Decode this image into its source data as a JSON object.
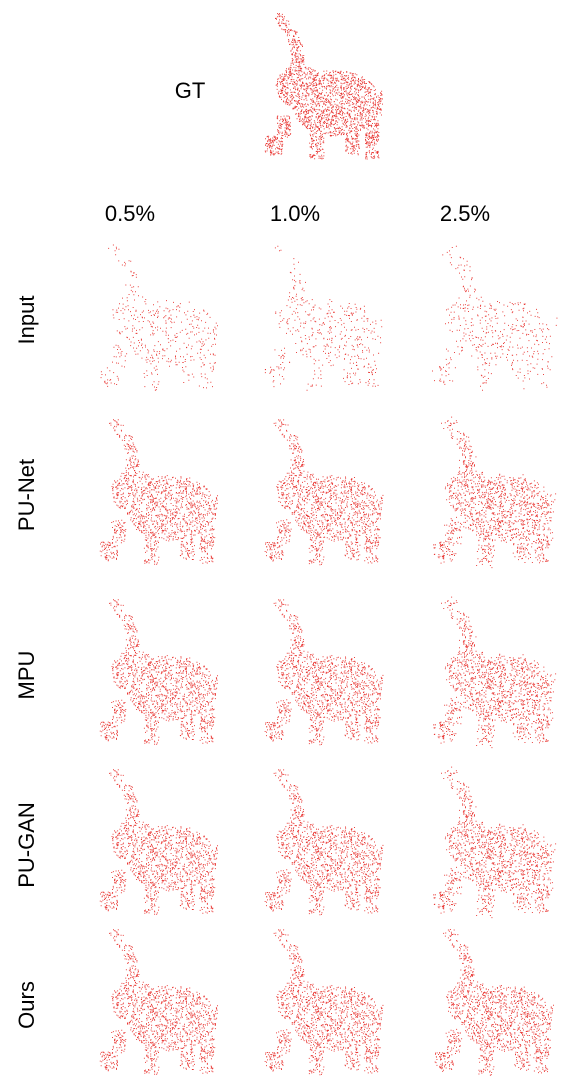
{
  "gt_label": "GT",
  "columns": [
    "0.5%",
    "1.0%",
    "2.5%"
  ],
  "rows": [
    "Input",
    "PU-Net",
    "MPU",
    "PU-GAN",
    "Ours"
  ]
}
